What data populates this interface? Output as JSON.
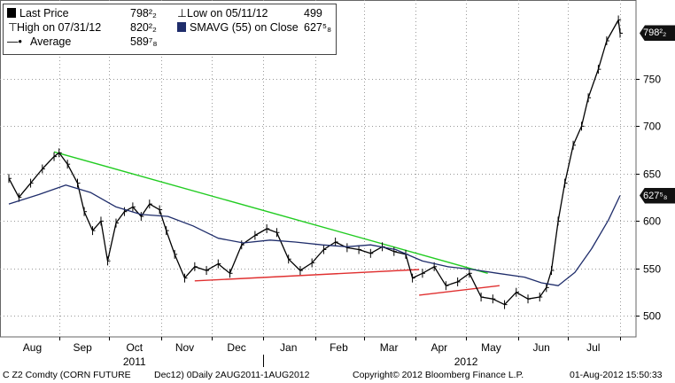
{
  "legend": {
    "last_price_label": "Last Price",
    "last_price_value": "798²₂",
    "low_label": "Low on 05/11/12",
    "low_value": "499",
    "high_label": "High on 07/31/12",
    "high_value": "820²₂",
    "smavg_label": "SMAVG (55) on Close",
    "smavg_value": "627⁵₈",
    "average_label": "Average",
    "average_value": "589⁷₈"
  },
  "price_tags": {
    "last": "798²₂",
    "smavg": "627⁵₈"
  },
  "footer": {
    "ticker": "C Z2 Comdty (CORN FUTURE",
    "period": "Dec12) 0Daily 2AUG2011-1AUG2012",
    "copyright": "Copyright© 2012 Bloomberg Finance L.P.",
    "timestamp": "01-Aug-2012 15:50:33"
  },
  "colors": {
    "price": "#000000",
    "smavg": "#1f2d6b",
    "resistance": "#22cc22",
    "support": "#e03030",
    "grid": "#999999"
  },
  "chart_data": {
    "type": "line",
    "title": "",
    "xlabel": "",
    "ylabel": "",
    "ylim": [
      478,
      833
    ],
    "grid": true,
    "legend_position": "top-left",
    "x_tick_labels": [
      "Aug",
      "Sep",
      "Oct",
      "Nov",
      "Dec",
      "Jan",
      "Feb",
      "Mar",
      "Apr",
      "May",
      "Jun",
      "Jul"
    ],
    "year_labels": [
      "2011",
      "2012"
    ],
    "y_ticks": [
      500,
      550,
      600,
      650,
      700,
      750
    ],
    "x_date_range": [
      "2011-08-02",
      "2012-08-01"
    ],
    "series": [
      {
        "name": "Last Price",
        "x": [
          "2011-08-02",
          "2011-08-08",
          "2011-08-15",
          "2011-08-22",
          "2011-08-29",
          "2011-09-01",
          "2011-09-06",
          "2011-09-12",
          "2011-09-16",
          "2011-09-21",
          "2011-09-26",
          "2011-09-30",
          "2011-10-05",
          "2011-10-10",
          "2011-10-15",
          "2011-10-20",
          "2011-10-25",
          "2011-10-31",
          "2011-11-04",
          "2011-11-09",
          "2011-11-15",
          "2011-11-21",
          "2011-11-28",
          "2011-12-05",
          "2011-12-12",
          "2011-12-19",
          "2011-12-27",
          "2012-01-03",
          "2012-01-09",
          "2012-01-16",
          "2012-01-23",
          "2012-01-30",
          "2012-02-06",
          "2012-02-13",
          "2012-02-20",
          "2012-02-27",
          "2012-03-05",
          "2012-03-12",
          "2012-03-19",
          "2012-03-26",
          "2012-03-30",
          "2012-04-05",
          "2012-04-12",
          "2012-04-19",
          "2012-04-26",
          "2012-05-03",
          "2012-05-10",
          "2012-05-17",
          "2012-05-24",
          "2012-05-31",
          "2012-06-07",
          "2012-06-14",
          "2012-06-18",
          "2012-06-21",
          "2012-06-25",
          "2012-06-29",
          "2012-07-04",
          "2012-07-09",
          "2012-07-13",
          "2012-07-19",
          "2012-07-24",
          "2012-07-31",
          "2012-08-01"
        ],
        "values": [
          645,
          625,
          640,
          655,
          668,
          672,
          660,
          640,
          610,
          590,
          600,
          558,
          598,
          610,
          615,
          605,
          618,
          612,
          590,
          565,
          540,
          552,
          548,
          555,
          545,
          575,
          585,
          592,
          588,
          560,
          548,
          556,
          570,
          578,
          572,
          570,
          566,
          573,
          568,
          565,
          540,
          545,
          552,
          532,
          536,
          545,
          520,
          518,
          512,
          525,
          518,
          520,
          530,
          548,
          600,
          640,
          680,
          700,
          730,
          760,
          790,
          812,
          798
        ]
      },
      {
        "name": "SMAVG (55) on Close",
        "x": [
          "2011-08-02",
          "2011-08-20",
          "2011-09-05",
          "2011-09-20",
          "2011-10-05",
          "2011-10-20",
          "2011-11-05",
          "2011-11-20",
          "2011-12-05",
          "2011-12-20",
          "2012-01-05",
          "2012-01-20",
          "2012-02-05",
          "2012-02-20",
          "2012-03-05",
          "2012-03-20",
          "2012-04-05",
          "2012-04-20",
          "2012-05-05",
          "2012-05-20",
          "2012-06-05",
          "2012-06-15",
          "2012-06-25",
          "2012-07-05",
          "2012-07-15",
          "2012-07-25",
          "2012-08-01"
        ],
        "values": [
          618,
          628,
          638,
          630,
          615,
          607,
          605,
          595,
          582,
          577,
          580,
          578,
          575,
          573,
          575,
          570,
          558,
          552,
          549,
          545,
          541,
          535,
          532,
          546,
          571,
          601,
          627
        ]
      }
    ],
    "trendlines": [
      {
        "name": "resistance",
        "from": [
          "2011-08-29",
          673
        ],
        "to": [
          "2012-05-14",
          545
        ]
      },
      {
        "name": "support-1",
        "from": [
          "2011-11-21",
          537
        ],
        "to": [
          "2012-04-03",
          549
        ]
      },
      {
        "name": "support-2",
        "from": [
          "2012-04-03",
          522
        ],
        "to": [
          "2012-05-21",
          532
        ]
      }
    ]
  }
}
